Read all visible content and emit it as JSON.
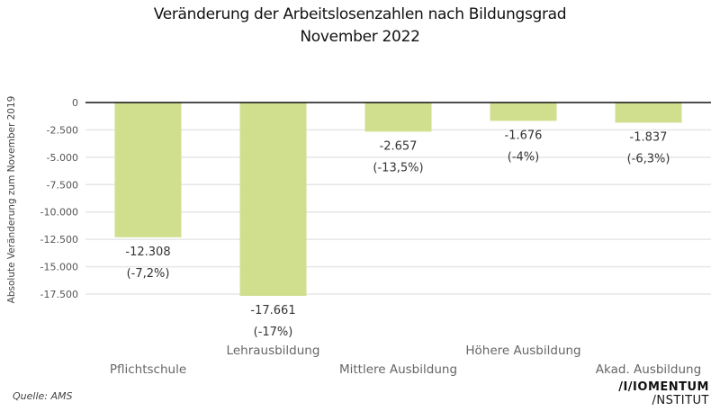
{
  "chart_data": {
    "type": "bar",
    "title": "Veränderung der Arbeitslosenzahlen nach Bildungsgrad",
    "subtitle": "November 2022",
    "xlabel": "",
    "ylabel": "Absolute Veränderung zum November 2019",
    "ylim": [
      -17661,
      0
    ],
    "yticks": [
      0,
      -2500,
      -5000,
      -7500,
      -10000,
      -12500,
      -15000,
      -17500
    ],
    "ytick_labels": [
      "0",
      "-2.500",
      "-5.000",
      "-7.500",
      "-10.000",
      "-12.500",
      "-15.000",
      "-17.500"
    ],
    "grid": true,
    "categories": [
      "Pflichtschule",
      "Lehrausbildung",
      "Mittlere Ausbildung",
      "Höhere Ausbildung",
      "Akad. Ausbildung"
    ],
    "values": [
      -12308,
      -17661,
      -2657,
      -1676,
      -1837
    ],
    "value_labels": [
      "-12.308",
      "-17.661",
      "-2.657",
      "-1.676",
      "-1.837"
    ],
    "percent_labels": [
      "(-7,2%)",
      "(-17%)",
      "(-13,5%)",
      "(-4%)",
      "(-6,3%)"
    ],
    "bar_color": "#d0df8e"
  },
  "source": "Quelle: AMS",
  "logo": {
    "line1": "/I/IOMENTUM",
    "line2": "/NSTITUT"
  }
}
